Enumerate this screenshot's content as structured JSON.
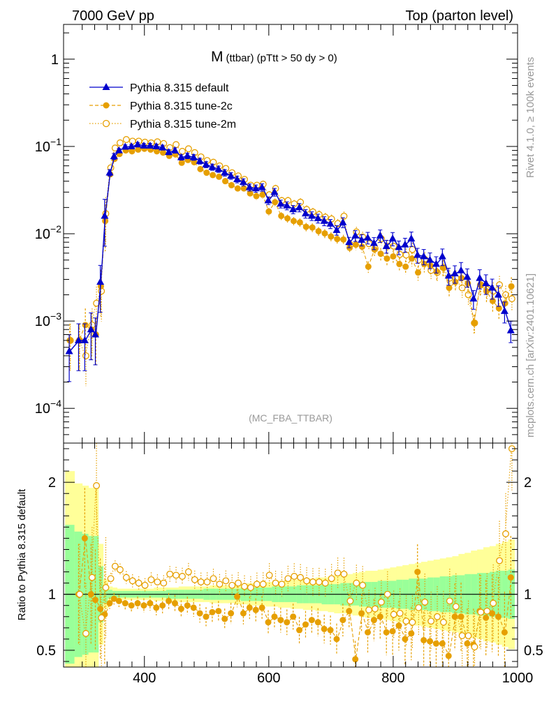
{
  "header": {
    "left": "7000 GeV pp",
    "right": "Top (parton level)"
  },
  "side_labels": {
    "rivet": "Rivet 4.1.0, ≥ 100k events",
    "mcplots": "mcplots.cern.ch [arXiv:2401.10621]"
  },
  "colors": {
    "default": "#0000cc",
    "tune2c": "#e69f00",
    "tune2m": "#e69f00",
    "band_yellow": "#ffff99",
    "band_green": "#99ff99"
  },
  "chart_data": [
    {
      "type": "line",
      "title": "M",
      "subtitle": "(ttbar) (pTtt > 50 dy > 0)",
      "watermark": "(MC_FBA_TTBAR)",
      "xlabel": "",
      "ylabel": "",
      "yscale": "log",
      "xlim": [
        270,
        1000
      ],
      "ylim": [
        4e-05,
        2.5
      ],
      "yticks": [
        {
          "value": 1,
          "base": "1",
          "exp": ""
        },
        {
          "value": 0.1,
          "base": "10",
          "exp": "−1"
        },
        {
          "value": 0.01,
          "base": "10",
          "exp": "−2"
        },
        {
          "value": 0.001,
          "base": "10",
          "exp": "−3"
        },
        {
          "value": 0.0001,
          "base": "10",
          "exp": "−4"
        }
      ],
      "legend_position": "top-left",
      "series": [
        {
          "name": "Pythia 8.315 default",
          "marker": "triangle",
          "x": [
            280,
            295,
            305,
            315,
            322,
            330,
            337,
            345,
            352,
            360,
            370,
            380,
            390,
            400,
            410,
            420,
            430,
            440,
            450,
            460,
            470,
            480,
            490,
            500,
            510,
            520,
            530,
            540,
            550,
            560,
            570,
            580,
            590,
            600,
            610,
            620,
            630,
            640,
            650,
            660,
            670,
            680,
            690,
            700,
            710,
            720,
            730,
            740,
            750,
            760,
            770,
            780,
            790,
            800,
            810,
            820,
            830,
            840,
            850,
            860,
            870,
            880,
            890,
            900,
            910,
            920,
            930,
            940,
            950,
            960,
            970,
            980,
            990
          ],
          "values": [
            0.00045,
            0.0006,
            0.0006,
            0.0008,
            0.0007,
            0.0028,
            0.016,
            0.05,
            0.077,
            0.09,
            0.099,
            0.1,
            0.105,
            0.102,
            0.102,
            0.1,
            0.097,
            0.086,
            0.09,
            0.075,
            0.078,
            0.075,
            0.068,
            0.062,
            0.058,
            0.055,
            0.05,
            0.046,
            0.042,
            0.039,
            0.034,
            0.033,
            0.034,
            0.024,
            0.03,
            0.022,
            0.021,
            0.019,
            0.02,
            0.017,
            0.016,
            0.015,
            0.014,
            0.013,
            0.011,
            0.0135,
            0.008,
            0.0095,
            0.0085,
            0.009,
            0.0078,
            0.0095,
            0.0072,
            0.0088,
            0.007,
            0.0075,
            0.0088,
            0.0057,
            0.0055,
            0.005,
            0.0045,
            0.0055,
            0.0033,
            0.0035,
            0.0038,
            0.0032,
            0.0018,
            0.0031,
            0.0027,
            0.0024,
            0.002,
            0.0013,
            0.00078
          ]
        },
        {
          "name": "Pythia 8.315 tune-2c",
          "marker": "circle",
          "x": [
            280,
            295,
            305,
            315,
            322,
            330,
            337,
            345,
            352,
            360,
            370,
            380,
            390,
            400,
            410,
            420,
            430,
            440,
            450,
            460,
            470,
            480,
            490,
            500,
            510,
            520,
            530,
            540,
            550,
            560,
            570,
            580,
            590,
            600,
            610,
            620,
            630,
            640,
            650,
            660,
            670,
            680,
            690,
            700,
            710,
            720,
            730,
            740,
            750,
            760,
            770,
            780,
            790,
            800,
            810,
            820,
            830,
            840,
            850,
            860,
            870,
            880,
            890,
            900,
            910,
            920,
            930,
            940,
            950,
            960,
            970,
            980,
            990
          ],
          "values": [
            0.0006,
            0.0006,
            0.0009,
            0.0008,
            0.0007,
            0.0025,
            0.014,
            0.048,
            0.072,
            0.082,
            0.09,
            0.088,
            0.092,
            0.094,
            0.092,
            0.088,
            0.085,
            0.078,
            0.081,
            0.065,
            0.07,
            0.066,
            0.055,
            0.05,
            0.047,
            0.045,
            0.04,
            0.036,
            0.033,
            0.033,
            0.029,
            0.027,
            0.028,
            0.018,
            0.023,
            0.016,
            0.015,
            0.014,
            0.0135,
            0.012,
            0.0118,
            0.0107,
            0.0101,
            0.0093,
            0.0087,
            0.0086,
            0.0069,
            0.0075,
            0.0071,
            0.0042,
            0.0066,
            0.0059,
            0.0052,
            0.0055,
            0.0045,
            0.0042,
            0.0052,
            0.0036,
            0.0045,
            0.0043,
            0.0037,
            0.0041,
            0.0024,
            0.0028,
            0.0031,
            0.0027,
            0.00095,
            0.0026,
            0.0022,
            0.0017,
            0.0014,
            0.0016,
            0.0025
          ]
        },
        {
          "name": "Pythia 8.315 tune-2m",
          "marker": "open-circle",
          "x": [
            280,
            295,
            305,
            315,
            322,
            330,
            337,
            345,
            352,
            360,
            370,
            380,
            390,
            400,
            410,
            420,
            430,
            440,
            450,
            460,
            470,
            480,
            490,
            500,
            510,
            520,
            530,
            540,
            550,
            560,
            570,
            580,
            590,
            600,
            610,
            620,
            630,
            640,
            650,
            660,
            670,
            680,
            690,
            700,
            710,
            720,
            730,
            740,
            750,
            760,
            770,
            780,
            790,
            800,
            810,
            820,
            830,
            840,
            850,
            860,
            870,
            880,
            890,
            900,
            910,
            920,
            930,
            940,
            950,
            960,
            970,
            980,
            990
          ],
          "values": [
            0.0006,
            0.0006,
            0.0004,
            0.0009,
            0.0016,
            0.0022,
            0.017,
            0.057,
            0.096,
            0.11,
            0.12,
            0.115,
            0.115,
            0.112,
            0.11,
            0.113,
            0.108,
            0.097,
            0.105,
            0.088,
            0.094,
            0.085,
            0.076,
            0.069,
            0.066,
            0.06,
            0.056,
            0.05,
            0.046,
            0.042,
            0.036,
            0.036,
            0.037,
            0.028,
            0.033,
            0.024,
            0.024,
            0.022,
            0.023,
            0.019,
            0.0178,
            0.0166,
            0.0155,
            0.0148,
            0.0131,
            0.0159,
            0.0075,
            0.0105,
            0.0092,
            0.0077,
            0.0068,
            0.0088,
            0.0072,
            0.0072,
            0.0058,
            0.0057,
            0.0066,
            0.005,
            0.0051,
            0.0038,
            0.0036,
            0.0041,
            0.0031,
            0.0031,
            0.0024,
            0.002,
            0.00095,
            0.0026,
            0.0023,
            0.0022,
            0.0026,
            0.002,
            0.0018
          ]
        }
      ]
    },
    {
      "type": "line",
      "title": "",
      "xlabel": "",
      "ylabel": "Ratio to Pythia 8.315 default",
      "xlim": [
        270,
        1000
      ],
      "ylim": [
        0.35,
        2.35
      ],
      "xticks": [
        400,
        600,
        800,
        1000
      ],
      "yticks": [
        {
          "value": 0.5,
          "label": "0.5"
        },
        {
          "value": 1,
          "label": "1"
        },
        {
          "value": 2,
          "label": "2"
        }
      ],
      "reference_line": 1,
      "bands": {
        "x": [
          280,
          295,
          305,
          315,
          322,
          330,
          337,
          345,
          352,
          360,
          370,
          380,
          390,
          400,
          410,
          420,
          430,
          440,
          450,
          460,
          470,
          480,
          490,
          500,
          510,
          520,
          530,
          540,
          550,
          560,
          570,
          580,
          590,
          600,
          610,
          620,
          630,
          640,
          650,
          660,
          670,
          680,
          690,
          700,
          710,
          720,
          730,
          740,
          750,
          760,
          770,
          780,
          790,
          800,
          810,
          820,
          830,
          840,
          850,
          860,
          870,
          880,
          890,
          900,
          910,
          920,
          930,
          940,
          950,
          960,
          970,
          980,
          990
        ],
        "yellow_halfwidth": [
          1.1,
          0.99,
          0.97,
          0.95,
          0.95,
          0.45,
          0.13,
          0.07,
          0.06,
          0.05,
          0.05,
          0.05,
          0.05,
          0.05,
          0.05,
          0.06,
          0.06,
          0.06,
          0.06,
          0.07,
          0.07,
          0.07,
          0.07,
          0.07,
          0.08,
          0.08,
          0.08,
          0.08,
          0.09,
          0.09,
          0.1,
          0.1,
          0.1,
          0.11,
          0.11,
          0.12,
          0.12,
          0.13,
          0.13,
          0.14,
          0.14,
          0.15,
          0.15,
          0.16,
          0.17,
          0.17,
          0.18,
          0.19,
          0.2,
          0.21,
          0.21,
          0.22,
          0.23,
          0.24,
          0.25,
          0.26,
          0.27,
          0.28,
          0.29,
          0.3,
          0.31,
          0.32,
          0.33,
          0.34,
          0.36,
          0.37,
          0.39,
          0.4,
          0.42,
          0.43,
          0.45,
          0.47,
          0.49
        ],
        "green_halfwidth": [
          0.62,
          0.56,
          0.54,
          0.52,
          0.52,
          0.25,
          0.08,
          0.04,
          0.03,
          0.03,
          0.03,
          0.03,
          0.03,
          0.03,
          0.03,
          0.03,
          0.03,
          0.04,
          0.04,
          0.04,
          0.04,
          0.04,
          0.04,
          0.05,
          0.05,
          0.05,
          0.05,
          0.05,
          0.05,
          0.06,
          0.06,
          0.06,
          0.06,
          0.06,
          0.07,
          0.07,
          0.07,
          0.07,
          0.08,
          0.08,
          0.08,
          0.08,
          0.09,
          0.09,
          0.09,
          0.1,
          0.1,
          0.1,
          0.11,
          0.11,
          0.11,
          0.12,
          0.12,
          0.12,
          0.13,
          0.13,
          0.14,
          0.14,
          0.14,
          0.15,
          0.15,
          0.16,
          0.16,
          0.17,
          0.17,
          0.18,
          0.18,
          0.19,
          0.19,
          0.2,
          0.21,
          0.21,
          0.22
        ]
      },
      "series": [
        {
          "name": "Pythia 8.315 tune-2c",
          "marker": "circle",
          "x": [
            295,
            305,
            315,
            322,
            330,
            337,
            345,
            352,
            360,
            370,
            380,
            390,
            400,
            410,
            420,
            430,
            440,
            450,
            460,
            470,
            480,
            490,
            500,
            510,
            520,
            530,
            540,
            550,
            560,
            570,
            580,
            590,
            600,
            610,
            620,
            630,
            640,
            650,
            660,
            670,
            680,
            690,
            700,
            710,
            720,
            730,
            740,
            750,
            760,
            770,
            780,
            790,
            800,
            810,
            820,
            830,
            840,
            850,
            860,
            870,
            880,
            890,
            900,
            910,
            920,
            930,
            940,
            950,
            960,
            970,
            980,
            990
          ],
          "values": [
            1.0,
            1.5,
            1.0,
            0.95,
            0.87,
            0.82,
            0.92,
            0.96,
            0.94,
            0.92,
            0.9,
            0.92,
            0.9,
            0.92,
            0.88,
            0.9,
            0.94,
            0.92,
            0.87,
            0.9,
            0.88,
            0.83,
            0.8,
            0.84,
            0.85,
            0.78,
            0.83,
            0.98,
            0.83,
            0.88,
            0.86,
            0.88,
            0.75,
            0.8,
            0.77,
            0.75,
            0.8,
            0.68,
            0.73,
            0.77,
            0.75,
            0.69,
            0.68,
            0.6,
            0.77,
            0.85,
            0.42,
            0.83,
            0.66,
            0.77,
            0.8,
            0.66,
            0.67,
            0.72,
            0.6,
            0.65,
            1.2,
            0.59,
            0.58,
            0.56,
            0.56,
            0.45,
            0.8,
            0.8,
            0.56,
            0.55,
            0.85,
            0.79,
            0.83,
            0.8,
            0.66,
            1.15
          ]
        },
        {
          "name": "Pythia 8.315 tune-2m",
          "marker": "open-circle",
          "x": [
            295,
            305,
            315,
            322,
            330,
            337,
            345,
            352,
            360,
            370,
            380,
            390,
            400,
            410,
            420,
            430,
            440,
            450,
            460,
            470,
            480,
            490,
            500,
            510,
            520,
            530,
            540,
            550,
            560,
            570,
            580,
            590,
            600,
            610,
            620,
            630,
            640,
            650,
            660,
            670,
            680,
            690,
            700,
            710,
            720,
            730,
            740,
            750,
            760,
            770,
            780,
            790,
            800,
            810,
            820,
            830,
            840,
            850,
            860,
            870,
            880,
            890,
            900,
            910,
            920,
            930,
            940,
            950,
            960,
            970,
            980,
            990
          ],
          "values": [
            1.0,
            0.65,
            1.15,
            1.97,
            0.79,
            1.06,
            1.14,
            1.25,
            1.22,
            1.15,
            1.12,
            1.1,
            1.08,
            1.13,
            1.11,
            1.1,
            1.18,
            1.17,
            1.16,
            1.2,
            1.13,
            1.11,
            1.11,
            1.14,
            1.09,
            1.12,
            1.08,
            1.1,
            1.07,
            1.06,
            1.09,
            1.09,
            1.17,
            1.1,
            1.09,
            1.14,
            1.16,
            1.15,
            1.12,
            1.11,
            1.11,
            1.1,
            1.14,
            1.19,
            1.18,
            0.94,
            1.1,
            1.08,
            0.86,
            0.87,
            0.93,
            1.0,
            0.82,
            0.83,
            0.76,
            0.75,
            0.88,
            0.93,
            0.76,
            0.8,
            0.75,
            0.94,
            0.89,
            0.63,
            0.63,
            0.53,
            0.84,
            0.85,
            0.92,
            1.3,
            1.54,
            2.3
          ]
        }
      ]
    }
  ]
}
